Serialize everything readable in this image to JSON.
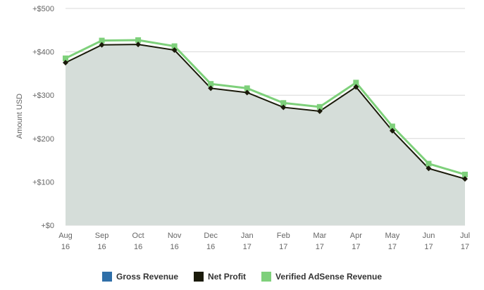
{
  "chart_data": {
    "type": "area",
    "ylabel": "Amount USD",
    "xlabel": "",
    "categories": [
      "Aug 16",
      "Sep 16",
      "Oct 16",
      "Nov 16",
      "Dec 16",
      "Jan 17",
      "Feb 17",
      "Mar 17",
      "Apr 17",
      "May 17",
      "Jun 17",
      "Jul 17"
    ],
    "category_lines": [
      [
        "Aug",
        "16"
      ],
      [
        "Sep",
        "16"
      ],
      [
        "Oct",
        "16"
      ],
      [
        "Nov",
        "16"
      ],
      [
        "Dec",
        "16"
      ],
      [
        "Jan",
        "17"
      ],
      [
        "Feb",
        "17"
      ],
      [
        "Mar",
        "17"
      ],
      [
        "Apr",
        "17"
      ],
      [
        "May",
        "17"
      ],
      [
        "Jun",
        "17"
      ],
      [
        "Jul",
        "17"
      ]
    ],
    "ylim": [
      0,
      500
    ],
    "yticks": [
      0,
      100,
      200,
      300,
      400,
      500
    ],
    "ytick_labels": [
      "+$0",
      "+$100",
      "+$200",
      "+$300",
      "+$400",
      "+$500"
    ],
    "grid": true,
    "legend_position": "bottom-center",
    "series": [
      {
        "name": "Gross Revenue",
        "color": "#2f6fa8",
        "values": [
          375,
          416,
          417,
          404,
          316,
          306,
          272,
          263,
          319,
          218,
          131,
          107
        ]
      },
      {
        "name": "Net Profit",
        "color": "#1a1a0a",
        "values": [
          375,
          416,
          417,
          404,
          316,
          306,
          272,
          263,
          319,
          218,
          131,
          107
        ]
      },
      {
        "name": "Verified AdSense Revenue",
        "color": "#7ed07b",
        "values": [
          385,
          426,
          427,
          413,
          326,
          316,
          282,
          273,
          329,
          228,
          142,
          117
        ]
      }
    ]
  }
}
